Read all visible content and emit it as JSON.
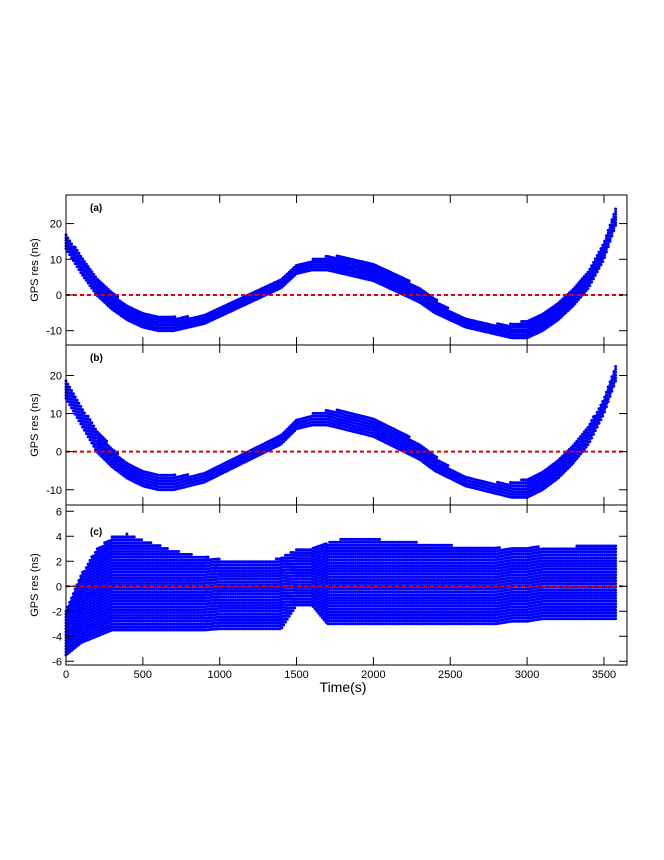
{
  "figure": {
    "xlabel": "Time(s)",
    "colors": {
      "data": "#0000ff",
      "zero_line": "#e00000",
      "axes": "#000000"
    }
  },
  "chart_data": [
    {
      "type": "scatter",
      "panel_label": "(a)",
      "ylabel": "GPS res (ns)",
      "xlim": [
        0,
        3650
      ],
      "ylim": [
        -14,
        28
      ],
      "x_ticks": [
        0,
        500,
        1000,
        1500,
        2000,
        2500,
        3000,
        3500
      ],
      "y_ticks": [
        -10,
        0,
        10,
        20
      ],
      "reference_line": {
        "y": 0,
        "style": "dashed",
        "color": "#e00000"
      },
      "series": [
        {
          "x": [
            0,
            100,
            200,
            300,
            400,
            500,
            600,
            700,
            800,
            900,
            1000,
            1100,
            1200,
            1300,
            1400,
            1500,
            1600,
            1700,
            1800,
            1900,
            2000,
            2100,
            2200,
            2300,
            2400,
            2500,
            2600,
            2700,
            2800,
            2900,
            3000,
            3100,
            3200,
            3300,
            3400,
            3500,
            3580
          ],
          "y_min": [
            13,
            6,
            0,
            -4,
            -7,
            -9,
            -10,
            -10,
            -9,
            -8,
            -6,
            -4,
            -2,
            0,
            2,
            6,
            7,
            7,
            6,
            5,
            4,
            2,
            0,
            -2,
            -5,
            -7,
            -9,
            -10,
            -11,
            -12,
            -12,
            -10,
            -7,
            -3,
            2,
            10,
            20
          ],
          "y_max": [
            17,
            11,
            5,
            1,
            -3,
            -5,
            -6,
            -6,
            -6,
            -5,
            -3,
            -1,
            1,
            3,
            5,
            9,
            10,
            11,
            11,
            10,
            9,
            7,
            5,
            2,
            -1,
            -4,
            -6,
            -7,
            -8,
            -8,
            -7,
            -5,
            -2,
            2,
            7,
            15,
            25
          ]
        }
      ]
    },
    {
      "type": "scatter",
      "panel_label": "(b)",
      "ylabel": "GPS res (ns)",
      "xlim": [
        0,
        3650
      ],
      "ylim": [
        -14,
        28
      ],
      "x_ticks": [
        0,
        500,
        1000,
        1500,
        2000,
        2500,
        3000,
        3500
      ],
      "y_ticks": [
        -10,
        0,
        10,
        20
      ],
      "reference_line": {
        "y": 0,
        "style": "dashed",
        "color": "#e00000"
      },
      "series": [
        {
          "x": [
            0,
            100,
            200,
            300,
            400,
            500,
            600,
            700,
            800,
            900,
            1000,
            1100,
            1200,
            1300,
            1400,
            1500,
            1600,
            1700,
            1800,
            1900,
            2000,
            2100,
            2200,
            2300,
            2400,
            2500,
            2600,
            2700,
            2800,
            2900,
            3000,
            3100,
            3200,
            3300,
            3400,
            3500,
            3580
          ],
          "y_min": [
            14,
            7,
            0,
            -4,
            -7,
            -9,
            -10,
            -10,
            -9,
            -8,
            -6,
            -4,
            -2,
            0,
            2,
            6,
            7,
            7,
            6,
            5,
            4,
            2,
            0,
            -2,
            -5,
            -7,
            -9,
            -10,
            -11,
            -12,
            -12,
            -10,
            -7,
            -3,
            2,
            10,
            19
          ],
          "y_max": [
            19,
            12,
            6,
            1,
            -3,
            -5,
            -6,
            -6,
            -6,
            -5,
            -3,
            -1,
            1,
            3,
            5,
            9,
            10,
            11,
            11,
            10,
            9,
            7,
            5,
            2,
            -1,
            -4,
            -6,
            -7,
            -8,
            -8,
            -7,
            -5,
            -2,
            2,
            7,
            14,
            23
          ]
        }
      ]
    },
    {
      "type": "scatter",
      "panel_label": "(c)",
      "ylabel": "GPS res (ns)",
      "xlim": [
        0,
        3650
      ],
      "ylim": [
        -6.3,
        6.5
      ],
      "x_ticks": [
        0,
        500,
        1000,
        1500,
        2000,
        2500,
        3000,
        3500
      ],
      "y_ticks": [
        -6,
        -4,
        -2,
        0,
        2,
        4,
        6
      ],
      "reference_line": {
        "y": 0,
        "style": "dashed",
        "color": "#e00000"
      },
      "series": [
        {
          "x": [
            0,
            100,
            200,
            300,
            400,
            500,
            600,
            700,
            800,
            900,
            1000,
            1100,
            1200,
            1300,
            1400,
            1500,
            1600,
            1700,
            1800,
            1900,
            2000,
            2100,
            2200,
            2300,
            2400,
            2500,
            2600,
            2700,
            2800,
            2900,
            3000,
            3100,
            3200,
            3300,
            3400,
            3500,
            3580
          ],
          "y_min": [
            -5.5,
            -4.5,
            -4,
            -3.5,
            -3.5,
            -3.5,
            -3.5,
            -3.5,
            -3.5,
            -3.5,
            -3.4,
            -3.4,
            -3.4,
            -3.4,
            -3.4,
            -1.5,
            -1.5,
            -3,
            -3,
            -3,
            -3,
            -3,
            -3,
            -3,
            -3,
            -3,
            -3,
            -3,
            -3,
            -2.8,
            -2.8,
            -2.6,
            -2.6,
            -2.6,
            -2.6,
            -2.6,
            -2.6
          ],
          "y_max": [
            -2,
            1,
            3,
            4,
            4.2,
            3.7,
            3.3,
            2.9,
            2.6,
            2.4,
            2.2,
            2,
            2,
            2,
            2.3,
            3,
            3,
            3.5,
            3.8,
            3.8,
            3.8,
            3.7,
            3.6,
            3.5,
            3.4,
            3.3,
            3.2,
            3.1,
            3.1,
            3.1,
            3.1,
            3.2,
            3.2,
            3.2,
            3.3,
            3.4,
            3.4
          ]
        }
      ]
    }
  ]
}
